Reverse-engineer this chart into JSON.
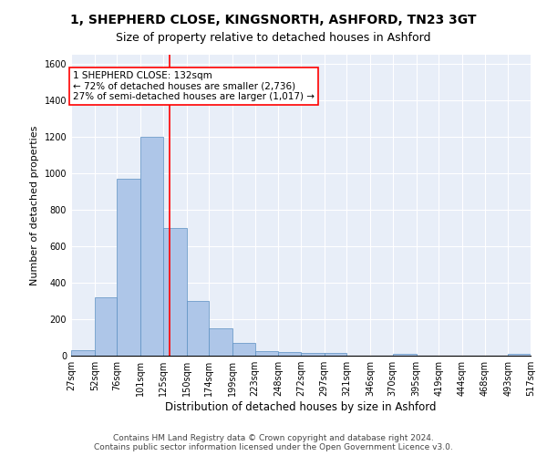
{
  "title": "1, SHEPHERD CLOSE, KINGSNORTH, ASHFORD, TN23 3GT",
  "subtitle": "Size of property relative to detached houses in Ashford",
  "xlabel": "Distribution of detached houses by size in Ashford",
  "ylabel": "Number of detached properties",
  "bar_color": "#aec6e8",
  "bar_edge_color": "#5a8fc2",
  "background_color": "#e8eef8",
  "grid_color": "#ffffff",
  "property_line_x": 132,
  "property_line_color": "red",
  "annotation_line1": "1 SHEPHERD CLOSE: 132sqm",
  "annotation_line2": "← 72% of detached houses are smaller (2,736)",
  "annotation_line3": "27% of semi-detached houses are larger (1,017) →",
  "bin_edges": [
    27,
    52,
    76,
    101,
    125,
    150,
    174,
    199,
    223,
    248,
    272,
    297,
    321,
    346,
    370,
    395,
    419,
    444,
    468,
    493,
    517
  ],
  "bar_heights": [
    30,
    320,
    970,
    1200,
    700,
    300,
    150,
    70,
    25,
    20,
    15,
    15,
    0,
    0,
    10,
    0,
    0,
    0,
    0,
    10
  ],
  "ylim": [
    0,
    1650
  ],
  "yticks": [
    0,
    200,
    400,
    600,
    800,
    1000,
    1200,
    1400,
    1600
  ],
  "footer_text": "Contains HM Land Registry data © Crown copyright and database right 2024.\nContains public sector information licensed under the Open Government Licence v3.0.",
  "title_fontsize": 10,
  "subtitle_fontsize": 9,
  "annotation_fontsize": 7.5,
  "tick_fontsize": 7,
  "ylabel_fontsize": 8,
  "xlabel_fontsize": 8.5,
  "footer_fontsize": 6.5
}
